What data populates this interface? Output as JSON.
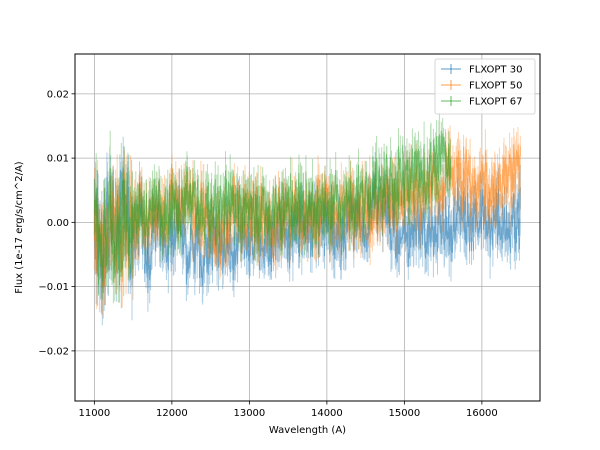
{
  "chart_data": {
    "type": "line",
    "title": "",
    "xlabel": "Wavelength (A)",
    "ylabel": "Flux (1e-17 erg/s/cm^2/A)",
    "xlim": [
      10750,
      16750
    ],
    "ylim": [
      -0.0278,
      0.0262
    ],
    "xticks": [
      11000,
      12000,
      13000,
      14000,
      15000,
      16000
    ],
    "xtick_labels": [
      "11000",
      "12000",
      "13000",
      "14000",
      "15000",
      "16000"
    ],
    "yticks": [
      -0.02,
      -0.01,
      0.0,
      0.01,
      0.02
    ],
    "ytick_labels": [
      "−0.02",
      "−0.01",
      "0.00",
      "0.01",
      "0.02"
    ],
    "grid": true,
    "legend_position": "top-right",
    "x_range": [
      11000,
      16500
    ],
    "series": [
      {
        "name": "FLXOPT 30",
        "color": "#1f77b4",
        "points": [
          [
            11000,
            0.0
          ],
          [
            11100,
            -0.004
          ],
          [
            11200,
            0.001
          ],
          [
            11300,
            -0.003
          ],
          [
            11400,
            0.002
          ],
          [
            11500,
            -0.003
          ],
          [
            11600,
            0.001
          ],
          [
            11700,
            -0.006
          ],
          [
            11800,
            0.0
          ],
          [
            11900,
            -0.002
          ],
          [
            12000,
            -0.003
          ],
          [
            12100,
            0.001
          ],
          [
            12200,
            -0.005
          ],
          [
            12300,
            -0.003
          ],
          [
            12400,
            -0.006
          ],
          [
            12500,
            -0.002
          ],
          [
            12600,
            -0.004
          ],
          [
            12700,
            -0.003
          ],
          [
            12800,
            -0.004
          ],
          [
            12900,
            -0.002
          ],
          [
            13000,
            -0.003
          ],
          [
            13100,
            -0.001
          ],
          [
            13200,
            -0.004
          ],
          [
            13300,
            -0.002
          ],
          [
            13400,
            0.0
          ],
          [
            13500,
            -0.003
          ],
          [
            13600,
            0.001
          ],
          [
            13700,
            -0.001
          ],
          [
            13800,
            0.0
          ],
          [
            13900,
            -0.002
          ],
          [
            14000,
            0.001
          ],
          [
            14100,
            -0.001
          ],
          [
            14200,
            -0.003
          ],
          [
            14300,
            0.0
          ],
          [
            14400,
            0.001
          ],
          [
            14500,
            -0.002
          ],
          [
            14600,
            0.002
          ],
          [
            14700,
            0.004
          ],
          [
            14800,
            0.001
          ],
          [
            14900,
            -0.002
          ],
          [
            15000,
            -0.003
          ],
          [
            15100,
            -0.001
          ],
          [
            15200,
            0.001
          ],
          [
            15300,
            -0.002
          ],
          [
            15400,
            -0.001
          ],
          [
            15500,
            0.001
          ],
          [
            15600,
            -0.002
          ],
          [
            15700,
            0.002
          ],
          [
            15800,
            0.001
          ],
          [
            15900,
            -0.001
          ],
          [
            16000,
            0.002
          ],
          [
            16100,
            -0.001
          ],
          [
            16200,
            0.001
          ],
          [
            16300,
            -0.002
          ],
          [
            16400,
            0.0
          ],
          [
            16500,
            0.0
          ]
        ]
      },
      {
        "name": "FLXOPT 50",
        "color": "#ff7f0e",
        "points": [
          [
            11000,
            0.002
          ],
          [
            11100,
            -0.006
          ],
          [
            11200,
            0.001
          ],
          [
            11300,
            -0.003
          ],
          [
            11400,
            0.0
          ],
          [
            11500,
            -0.002
          ],
          [
            11600,
            0.003
          ],
          [
            11700,
            -0.002
          ],
          [
            11800,
            0.002
          ],
          [
            11900,
            0.0
          ],
          [
            12000,
            0.003
          ],
          [
            12100,
            0.002
          ],
          [
            12200,
            0.004
          ],
          [
            12300,
            0.001
          ],
          [
            12400,
            0.002
          ],
          [
            12500,
            -0.001
          ],
          [
            12600,
            -0.002
          ],
          [
            12700,
            -0.001
          ],
          [
            12800,
            0.003
          ],
          [
            12900,
            0.001
          ],
          [
            13000,
            0.002
          ],
          [
            13100,
            0.0
          ],
          [
            13200,
            0.002
          ],
          [
            13300,
            -0.001
          ],
          [
            13400,
            0.001
          ],
          [
            13500,
            0.001
          ],
          [
            13600,
            0.002
          ],
          [
            13700,
            0.0
          ],
          [
            13800,
            0.001
          ],
          [
            13900,
            0.002
          ],
          [
            14000,
            0.003
          ],
          [
            14100,
            0.001
          ],
          [
            14200,
            0.002
          ],
          [
            14300,
            0.003
          ],
          [
            14400,
            0.002
          ],
          [
            14500,
            0.003
          ],
          [
            14600,
            0.001
          ],
          [
            14700,
            0.002
          ],
          [
            14800,
            0.004
          ],
          [
            14900,
            0.003
          ],
          [
            15000,
            0.004
          ],
          [
            15100,
            0.005
          ],
          [
            15200,
            0.004
          ],
          [
            15300,
            0.006
          ],
          [
            15400,
            0.006
          ],
          [
            15500,
            0.005
          ],
          [
            15600,
            0.008
          ],
          [
            15700,
            0.006
          ],
          [
            15800,
            0.007
          ],
          [
            15900,
            0.005
          ],
          [
            16000,
            0.006
          ],
          [
            16100,
            0.005
          ],
          [
            16200,
            0.007
          ],
          [
            16300,
            0.006
          ],
          [
            16400,
            0.008
          ],
          [
            16500,
            0.009
          ]
        ]
      },
      {
        "name": "FLXOPT 67",
        "color": "#2ca02c",
        "points": [
          [
            11000,
            0.003
          ],
          [
            11100,
            -0.006
          ],
          [
            11200,
            0.001
          ],
          [
            11300,
            -0.003
          ],
          [
            11400,
            0.002
          ],
          [
            11500,
            0.0
          ],
          [
            11600,
            0.002
          ],
          [
            11700,
            -0.001
          ],
          [
            11800,
            0.002
          ],
          [
            11900,
            0.001
          ],
          [
            12000,
            0.003
          ],
          [
            12100,
            0.002
          ],
          [
            12200,
            0.004
          ],
          [
            12300,
            0.002
          ],
          [
            12400,
            0.003
          ],
          [
            12500,
            0.001
          ],
          [
            12600,
            0.002
          ],
          [
            12700,
            0.003
          ],
          [
            12800,
            0.004
          ],
          [
            12900,
            0.002
          ],
          [
            13000,
            0.003
          ],
          [
            13100,
            0.001
          ],
          [
            13200,
            0.002
          ],
          [
            13300,
            0.001
          ],
          [
            13400,
            0.002
          ],
          [
            13500,
            0.002
          ],
          [
            13600,
            0.003
          ],
          [
            13700,
            0.002
          ],
          [
            13800,
            0.003
          ],
          [
            13900,
            0.002
          ],
          [
            14000,
            0.004
          ],
          [
            14100,
            0.003
          ],
          [
            14200,
            0.002
          ],
          [
            14300,
            0.003
          ],
          [
            14400,
            0.004
          ],
          [
            14500,
            0.004
          ],
          [
            14600,
            0.005
          ],
          [
            14700,
            0.006
          ],
          [
            14800,
            0.005
          ],
          [
            14900,
            0.006
          ],
          [
            15000,
            0.007
          ],
          [
            15100,
            0.006
          ],
          [
            15200,
            0.008
          ],
          [
            15300,
            0.007
          ],
          [
            15400,
            0.009
          ],
          [
            15500,
            0.01
          ],
          [
            15600,
            0.008
          ]
        ]
      }
    ]
  }
}
